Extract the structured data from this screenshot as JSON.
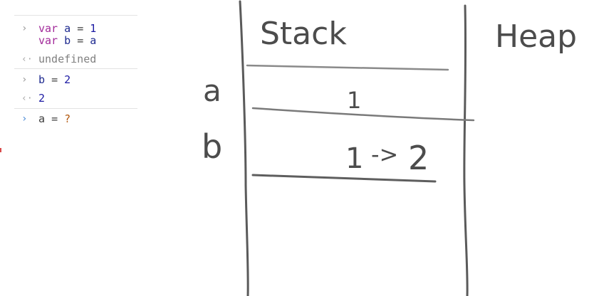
{
  "console": {
    "entries": [
      {
        "type": "input",
        "lines": [
          {
            "kw": "var",
            "name": "a",
            "op": "=",
            "value": "1"
          },
          {
            "kw": "var",
            "name": "b",
            "op": "=",
            "value": "a"
          }
        ],
        "result": "undefined"
      },
      {
        "type": "input",
        "line": {
          "name": "b",
          "op": "=",
          "value": "2"
        },
        "result": "2"
      },
      {
        "type": "prompt",
        "line": {
          "name": "a",
          "op": "=",
          "value": "?"
        }
      }
    ],
    "prompt_symbol": "›",
    "result_symbol": "‹·"
  },
  "whiteboard": {
    "stack_label": "Stack",
    "heap_label": "Heap",
    "row_a_label": "a",
    "row_b_label": "b",
    "cell_a_value": "1",
    "cell_b_old": "1",
    "cell_b_arrow": "->",
    "cell_b_new": "2"
  }
}
